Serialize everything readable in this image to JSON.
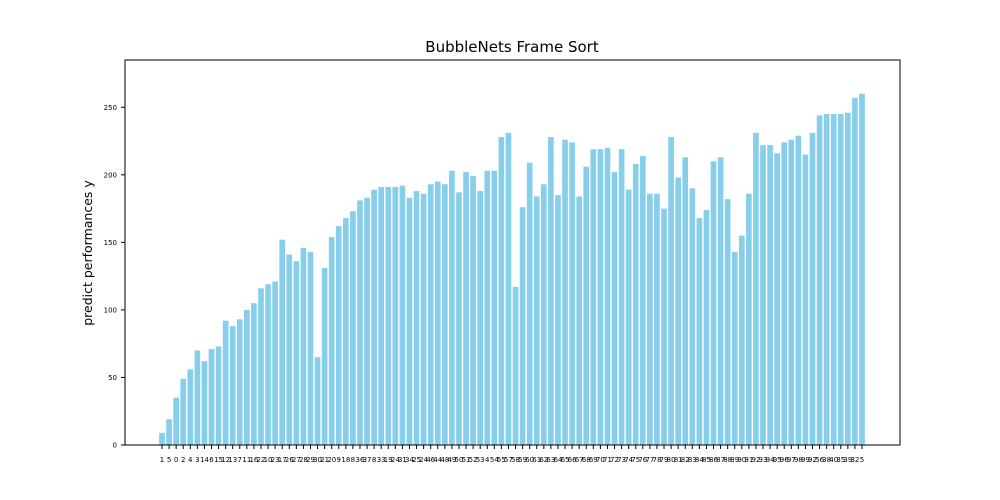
{
  "chart_data": {
    "type": "bar",
    "title": "BubbleNets Frame Sort",
    "xlabel": "",
    "ylabel": "predict performances y",
    "ylim": [
      0,
      285
    ],
    "yticks": [
      0,
      50,
      100,
      150,
      200,
      250
    ],
    "grid": false,
    "bar_color": "#87CEEB",
    "categories": [
      "1",
      "5",
      "0",
      "2",
      "4",
      "3",
      "14",
      "6",
      "15",
      "12",
      "13",
      "7",
      "11",
      "16",
      "22",
      "10",
      "23",
      "17",
      "26",
      "27",
      "28",
      "29",
      "30",
      "21",
      "20",
      "9",
      "18",
      "8",
      "36",
      "37",
      "8",
      "33",
      "19",
      "24",
      "31",
      "34",
      "25",
      "24",
      "46",
      "44",
      "48",
      "49",
      "50",
      "51",
      "52",
      "53",
      "4",
      "54",
      "55",
      "57",
      "58",
      "59",
      "60",
      "61",
      "62",
      "63",
      "64",
      "65",
      "66",
      "67",
      "68",
      "69",
      "70",
      "71",
      "72",
      "73",
      "74",
      "75",
      "76",
      "77",
      "78",
      "79",
      "80",
      "81",
      "82",
      "83",
      "84",
      "85",
      "86",
      "87",
      "88",
      "89",
      "90",
      "91",
      "92",
      "93",
      "94",
      "95",
      "96",
      "97",
      "98",
      "99",
      "92",
      "56",
      "38",
      "40",
      "35",
      "39",
      "32",
      "5"
    ],
    "values": [
      9,
      19,
      35,
      49,
      56,
      70,
      62,
      71,
      73,
      92,
      88,
      93,
      100,
      105,
      116,
      119,
      121,
      152,
      141,
      136,
      146,
      143,
      65,
      131,
      154,
      162,
      168,
      173,
      181,
      183,
      189,
      191,
      191,
      191,
      192,
      183,
      188,
      186,
      193,
      195,
      193,
      203,
      187,
      202,
      199,
      188,
      203,
      203,
      228,
      231,
      117,
      176,
      209,
      184,
      193,
      228,
      185,
      226,
      224,
      184,
      206,
      219,
      219,
      220,
      202,
      219,
      189,
      208,
      214,
      186,
      186,
      175,
      228,
      198,
      213,
      190,
      168,
      174,
      210,
      213,
      182,
      143,
      155,
      186,
      231,
      222,
      222,
      216,
      224,
      226,
      229,
      215,
      231,
      244,
      245,
      245,
      245,
      246,
      257,
      260
    ]
  }
}
